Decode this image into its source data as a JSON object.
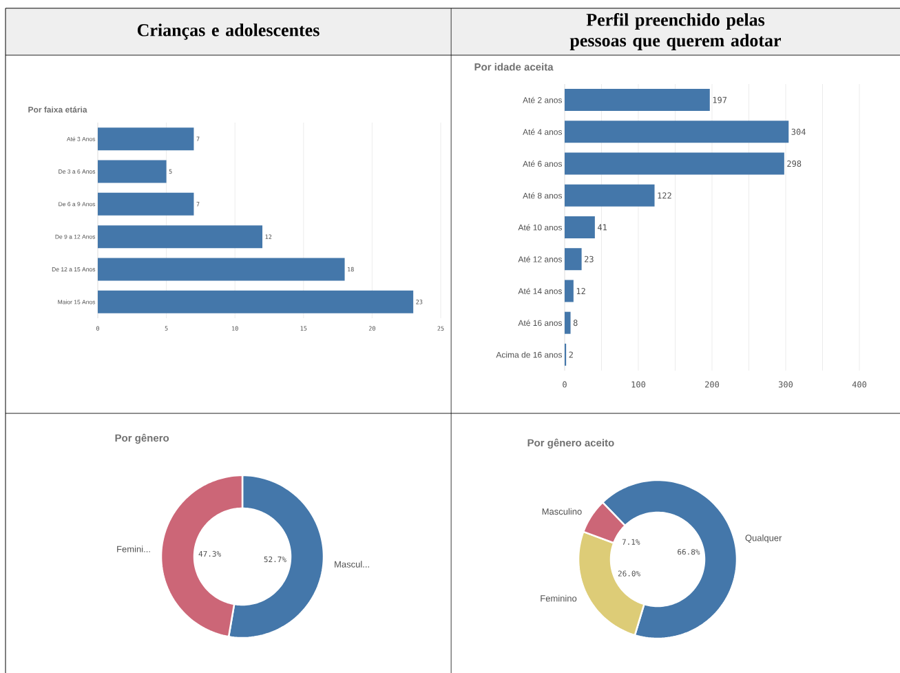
{
  "chart_data": [
    {
      "type": "other",
      "title": "Crianças e adolescentes"
    },
    {
      "type": "other",
      "title": "Perfil preenchido pelas pessoas que querem adotar"
    },
    {
      "type": "bar",
      "orientation": "horizontal",
      "title": "Por faixa etária",
      "categories": [
        "Até 3 Anos",
        "De 3 a 6 Anos",
        "De 6 a 9 Anos",
        "De 9 a 12 Anos",
        "De 12 a 15 Anos",
        "Maior 15 Anos"
      ],
      "values": [
        7,
        5,
        7,
        12,
        18,
        23
      ],
      "color": "#4477aa",
      "xlim": [
        0,
        25
      ],
      "xticks": [
        0,
        5,
        10,
        15,
        20,
        25
      ],
      "grid": "x",
      "data_labels": true
    },
    {
      "type": "bar",
      "orientation": "horizontal",
      "title": "Por idade aceita",
      "categories": [
        "Até 2 anos",
        "Até 4 anos",
        "Até 6 anos",
        "Até 8 anos",
        "Até 10 anos",
        "Até 12 anos",
        "Até 14 anos",
        "Até 16 anos",
        "Acima de 16 anos"
      ],
      "values": [
        197,
        304,
        298,
        122,
        41,
        23,
        12,
        8,
        2
      ],
      "color": "#4477aa",
      "xlim": [
        0,
        400
      ],
      "xticks": [
        0,
        {
          "value": 50,
          "label": null
        },
        100,
        {
          "value": 150,
          "label": null
        },
        200,
        {
          "value": 250,
          "label": null
        },
        300,
        {
          "value": 350,
          "label": null
        },
        400
      ],
      "grid": "x",
      "data_labels": true
    },
    {
      "type": "donut",
      "title": "Por gênero",
      "categories": [
        "Mascul...",
        "Femini..."
      ],
      "values": [
        52.7,
        47.3
      ],
      "value_labels": [
        "52.7%",
        "47.3%"
      ],
      "colors": [
        "#4477aa",
        "#cc6677"
      ]
    },
    {
      "type": "donut",
      "title": "Por gênero aceito",
      "categories": [
        "Qualquer",
        "Feminino",
        "Masculino"
      ],
      "values": [
        66.8,
        26.0,
        7.1
      ],
      "value_labels": [
        "66.8%",
        "26.0%",
        "7.1%"
      ],
      "colors": [
        "#4477aa",
        "#ddcc77",
        "#cc6677"
      ]
    }
  ]
}
